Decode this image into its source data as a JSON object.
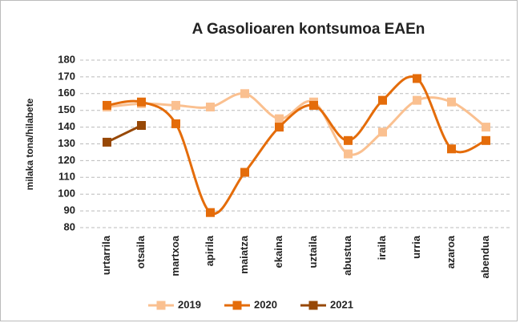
{
  "chart_data": {
    "type": "line",
    "title": "A Gasolioaren kontsumoa EAEn",
    "ylabel": "milaka tona/hilabete",
    "categories": [
      "urtarrila",
      "otsaila",
      "martxoa",
      "apirila",
      "maiatza",
      "ekaina",
      "uztaila",
      "abustua",
      "iraila",
      "urria",
      "azaroa",
      "abendua"
    ],
    "series": [
      {
        "name": "2019",
        "color": "#fac090",
        "values": [
          152,
          154,
          153,
          152,
          160,
          145,
          155,
          124,
          137,
          156,
          155,
          140
        ]
      },
      {
        "name": "2020",
        "color": "#e46c0a",
        "values": [
          153,
          155,
          142,
          89,
          113,
          140,
          153,
          132,
          156,
          169,
          127,
          132
        ]
      },
      {
        "name": "2021",
        "color": "#974806",
        "values": [
          131,
          141,
          null,
          null,
          null,
          null,
          null,
          null,
          null,
          null,
          null,
          null
        ]
      }
    ],
    "ylim": [
      80,
      180
    ],
    "yticks": [
      80,
      90,
      100,
      110,
      120,
      130,
      140,
      150,
      160,
      170,
      180
    ],
    "grid": true,
    "legend": "bottom"
  }
}
